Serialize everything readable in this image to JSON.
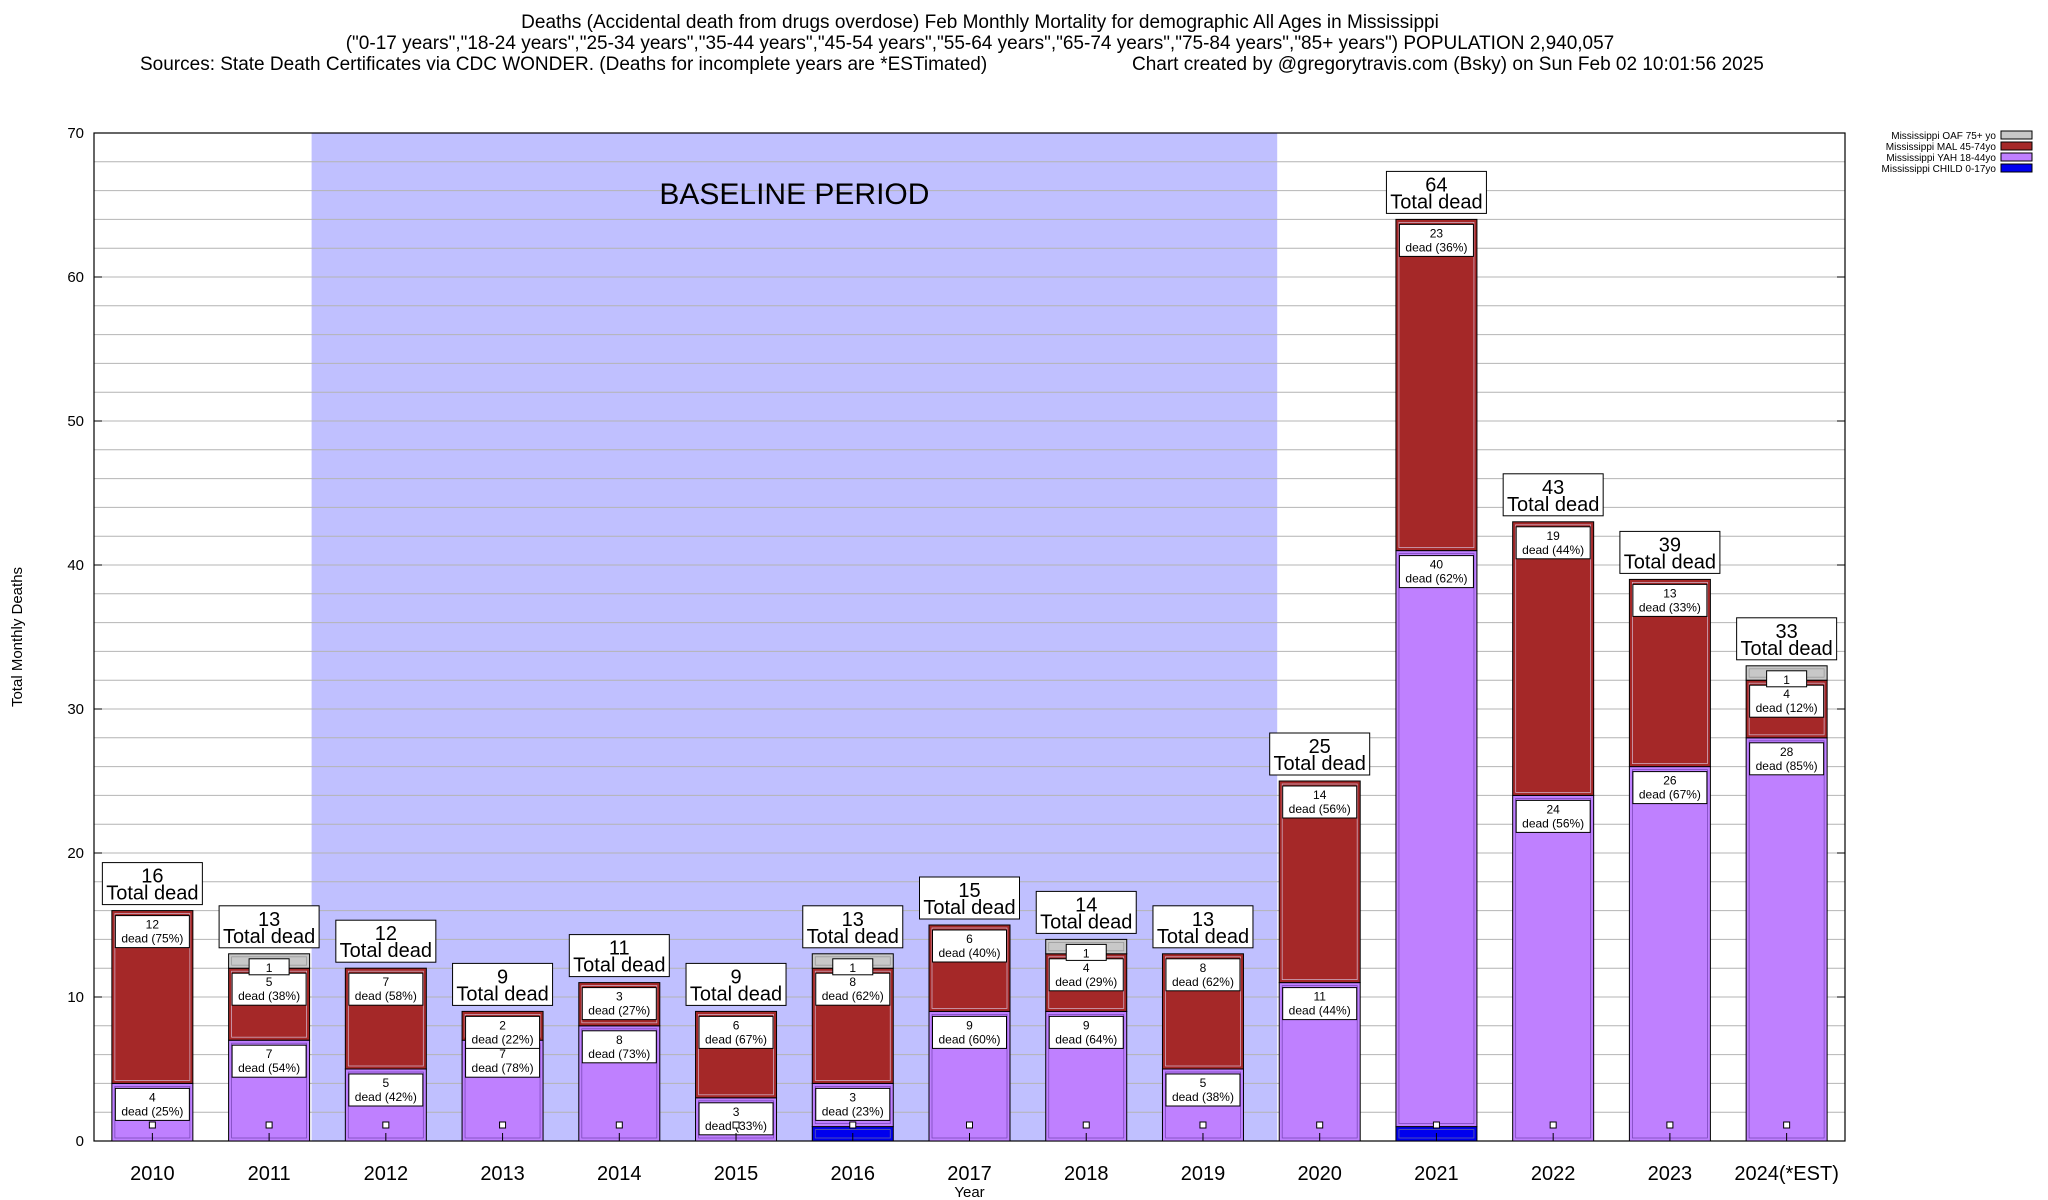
{
  "titles": {
    "line1": "Deaths (Accidental death from drugs overdose) Feb Monthly Mortality for demographic All Ages in Mississippi",
    "line2": "(\"0-17 years\",\"18-24 years\",\"25-34 years\",\"35-44 years\",\"45-54 years\",\"55-64 years\",\"65-74 years\",\"75-84 years\",\"85+ years\") POPULATION 2,940,057",
    "line3_left": "Sources: State Death Certificates via CDC WONDER. (Deaths for incomplete years are *ESTimated)",
    "line3_right": "Chart created by @gregorytravis.com (Bsky) on Sun Feb 02 10:01:56 2025"
  },
  "colors": {
    "child": "#0000ee",
    "yah": "#bf80ff",
    "mal": "#a52828",
    "oaf": "#c8c8c8",
    "baseline": "#c0c0ff",
    "grid": "#b4b4b4"
  },
  "chart_data": {
    "type": "bar",
    "stacked": true,
    "categories": [
      "2010",
      "2011",
      "2012",
      "2013",
      "2014",
      "2015",
      "2016",
      "2017",
      "2018",
      "2019",
      "2020",
      "2021",
      "2022",
      "2023",
      "2024(*EST)"
    ],
    "series": [
      {
        "name": "Mississippi CHILD 0-17yo",
        "key": "child",
        "values": [
          0,
          0,
          0,
          0,
          0,
          0,
          1,
          0,
          0,
          0,
          0,
          1,
          0,
          0,
          0
        ],
        "labels": [
          "",
          "",
          "",
          "",
          "",
          "",
          "",
          "",
          "",
          "",
          "",
          "",
          "",
          "",
          ""
        ]
      },
      {
        "name": "Mississippi YAH 18-44yo",
        "key": "yah",
        "values": [
          4,
          7,
          5,
          7,
          8,
          3,
          3,
          9,
          9,
          5,
          11,
          40,
          24,
          26,
          28
        ],
        "labels": [
          "dead (25%)",
          "dead (54%)",
          "dead (42%)",
          "dead (78%)",
          "dead (73%)",
          "dead (33%)",
          "dead (23%)",
          "dead (60%)",
          "dead (64%)",
          "dead (38%)",
          "dead (44%)",
          "dead (62%)",
          "dead (56%)",
          "dead (67%)",
          "dead (85%)"
        ]
      },
      {
        "name": "Mississippi MAL 45-74yo",
        "key": "mal",
        "values": [
          12,
          5,
          7,
          2,
          3,
          6,
          8,
          6,
          4,
          8,
          14,
          23,
          19,
          13,
          4
        ],
        "labels": [
          "dead (75%)",
          "dead (38%)",
          "dead (58%)",
          "dead (22%)",
          "dead (27%)",
          "dead (67%)",
          "dead (62%)",
          "dead (40%)",
          "dead (29%)",
          "dead (62%)",
          "dead (56%)",
          "dead (36%)",
          "dead (44%)",
          "dead (33%)",
          "dead (12%)"
        ]
      },
      {
        "name": "Mississippi OAF 75+ yo",
        "key": "oaf",
        "values": [
          0,
          1,
          0,
          0,
          0,
          0,
          1,
          0,
          1,
          0,
          0,
          0,
          0,
          0,
          1
        ],
        "labels": [
          "",
          "",
          "",
          "",
          "",
          "",
          "",
          "",
          "",
          "",
          "",
          "",
          "",
          "",
          ""
        ]
      }
    ],
    "totals": [
      16,
      13,
      12,
      9,
      11,
      9,
      13,
      15,
      14,
      13,
      25,
      64,
      43,
      39,
      33
    ],
    "total_label": "Total dead",
    "ylim": [
      0,
      70
    ],
    "yticks": [
      0,
      10,
      20,
      30,
      40,
      50,
      60,
      70
    ],
    "ylabel": "Total Monthly Deaths",
    "xlabel": "Year",
    "grid": true,
    "legend_position": "top-right",
    "annotation": {
      "text": "BASELINE PERIOD",
      "from_category": "2012",
      "to_category": "2019"
    }
  }
}
